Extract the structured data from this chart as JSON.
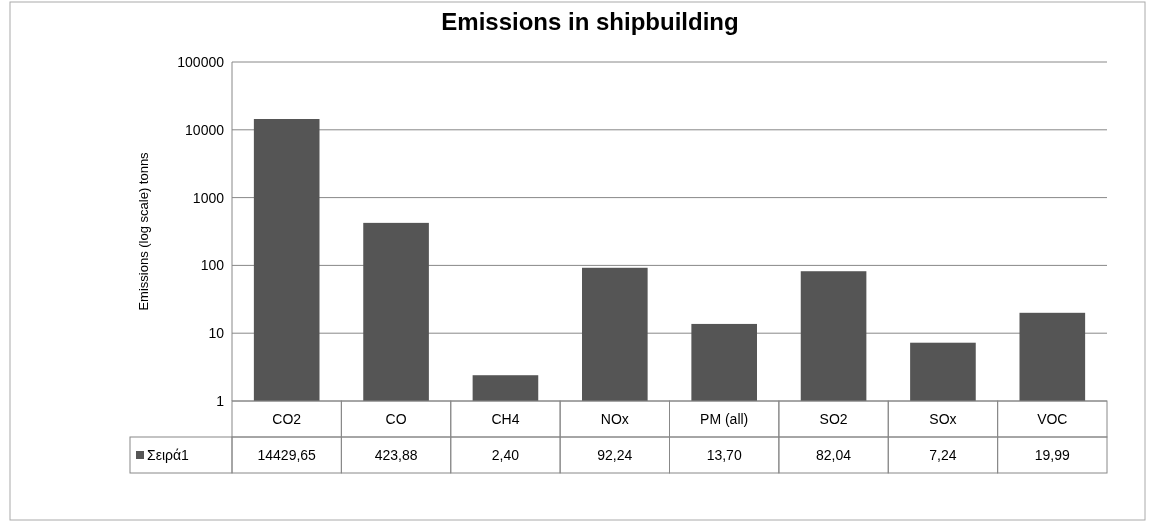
{
  "chart_data": {
    "type": "bar",
    "title": "Emissions in shipbuilding",
    "ylabel": "Emissions (log scale)   tonns",
    "categories": [
      "CO2",
      "CO",
      "CH4",
      "NOx",
      "PM (all)",
      "SO2",
      "SOx",
      "VOC"
    ],
    "series": [
      {
        "name": "Σειρά1",
        "color": "#555555",
        "values": [
          14429.65,
          423.88,
          2.4,
          92.24,
          13.7,
          82.04,
          7.24,
          19.99
        ],
        "value_labels": [
          "14429,65",
          "423,88",
          "2,40",
          "92,24",
          "13,70",
          "82,04",
          "7,24",
          "19,99"
        ]
      }
    ],
    "ylim": [
      1,
      100000
    ],
    "yticks": [
      1,
      10,
      100,
      1000,
      10000,
      100000
    ],
    "log": true,
    "grid": "y",
    "legend": "bottom"
  }
}
